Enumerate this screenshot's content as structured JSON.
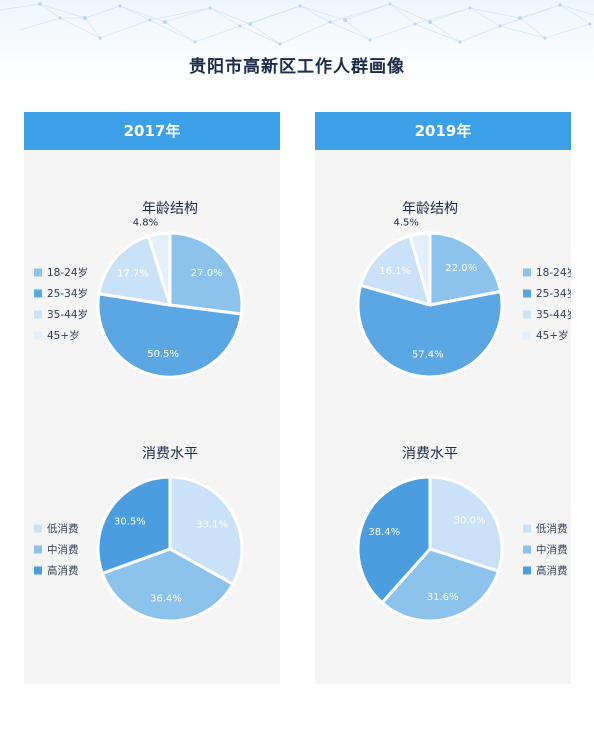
{
  "title": "贵阳市高新区工作人群画像",
  "colors": {
    "header_bg": "#3ba0e8",
    "panel_bg": "#f5f5f5",
    "title_text": "#1c2b4a"
  },
  "panels": [
    {
      "year": "2017年",
      "age": {
        "title": "年龄结构",
        "legend_side": "left",
        "slices": [
          {
            "label": "18-24岁",
            "value": 27.0,
            "display": "27.0%",
            "color": "#8cc3ed",
            "label_inside": true
          },
          {
            "label": "25-34岁",
            "value": 50.5,
            "display": "50.5%",
            "color": "#5aa7e3",
            "label_inside": true
          },
          {
            "label": "35-44岁",
            "value": 17.7,
            "display": "17.7%",
            "color": "#c9e2f7",
            "label_inside": true
          },
          {
            "label": "45+岁",
            "value": 4.8,
            "display": "4.8%",
            "color": "#e3f0fb",
            "label_inside": false
          }
        ]
      },
      "spend": {
        "title": "消费水平",
        "legend_side": "left",
        "slices": [
          {
            "label": "低消费",
            "value": 33.1,
            "display": "33.1%",
            "color": "#c9e2f7",
            "label_inside": true
          },
          {
            "label": "中消费",
            "value": 36.4,
            "display": "36.4%",
            "color": "#8cc3ed",
            "label_inside": true
          },
          {
            "label": "高消费",
            "value": 30.5,
            "display": "30.5%",
            "color": "#4a9ee0",
            "label_inside": true
          }
        ]
      }
    },
    {
      "year": "2019年",
      "age": {
        "title": "年龄结构",
        "legend_side": "right",
        "slices": [
          {
            "label": "18-24岁",
            "value": 22.0,
            "display": "22.0%",
            "color": "#8cc3ed",
            "label_inside": true
          },
          {
            "label": "25-34岁",
            "value": 57.4,
            "display": "57.4%",
            "color": "#5aa7e3",
            "label_inside": true
          },
          {
            "label": "35-44岁",
            "value": 16.1,
            "display": "16.1%",
            "color": "#c9e2f7",
            "label_inside": true
          },
          {
            "label": "45+岁",
            "value": 4.5,
            "display": "4.5%",
            "color": "#e3f0fb",
            "label_inside": false
          }
        ]
      },
      "spend": {
        "title": "消费水平",
        "legend_side": "right",
        "slices": [
          {
            "label": "低消费",
            "value": 30.0,
            "display": "30.0%",
            "color": "#c9e2f7",
            "label_inside": true
          },
          {
            "label": "中消费",
            "value": 31.6,
            "display": "31.6%",
            "color": "#8cc3ed",
            "label_inside": true
          },
          {
            "label": "高消费",
            "value": 38.4,
            "display": "38.4%",
            "color": "#4a9ee0",
            "label_inside": true
          }
        ]
      }
    }
  ],
  "chart_data": [
    {
      "type": "pie",
      "title": "年龄结构",
      "group": "2017年",
      "categories": [
        "18-24岁",
        "25-34岁",
        "35-44岁",
        "45+岁"
      ],
      "values": [
        27.0,
        50.5,
        17.7,
        4.8
      ],
      "legend": "left"
    },
    {
      "type": "pie",
      "title": "消费水平",
      "group": "2017年",
      "categories": [
        "低消费",
        "中消费",
        "高消费"
      ],
      "values": [
        33.1,
        36.4,
        30.5
      ],
      "legend": "left"
    },
    {
      "type": "pie",
      "title": "年龄结构",
      "group": "2019年",
      "categories": [
        "18-24岁",
        "25-34岁",
        "35-44岁",
        "45+岁"
      ],
      "values": [
        22.0,
        57.4,
        16.1,
        4.5
      ],
      "legend": "right"
    },
    {
      "type": "pie",
      "title": "消费水平",
      "group": "2019年",
      "categories": [
        "低消费",
        "中消费",
        "高消费"
      ],
      "values": [
        30.0,
        31.6,
        38.4
      ],
      "legend": "right"
    }
  ]
}
